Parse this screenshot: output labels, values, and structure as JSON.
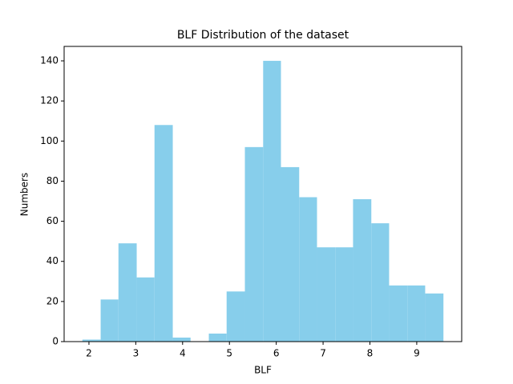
{
  "chart_data": {
    "type": "histogram",
    "title": "BLF Distribution of the dataset",
    "x_label": "BLF",
    "y_label": "Numbers",
    "bins": [
      1.86,
      2.25,
      2.63,
      3.02,
      3.4,
      3.79,
      4.17,
      4.56,
      4.94,
      5.33,
      5.72,
      6.1,
      6.49,
      6.87,
      7.26,
      7.64,
      8.03,
      8.41,
      8.8,
      9.18,
      9.57
    ],
    "values": [
      1,
      21,
      49,
      32,
      108,
      2,
      0,
      4,
      25,
      97,
      140,
      87,
      72,
      47,
      47,
      71,
      59,
      28,
      28,
      24
    ],
    "color": "#87ceeb",
    "xlim": [
      1.47,
      9.96
    ],
    "xticks": [
      2,
      3,
      4,
      5,
      6,
      7,
      8,
      9
    ],
    "ylim": [
      0,
      147.2
    ],
    "yticks": [
      0,
      20,
      40,
      60,
      80,
      100,
      120,
      140
    ],
    "grid": false
  }
}
